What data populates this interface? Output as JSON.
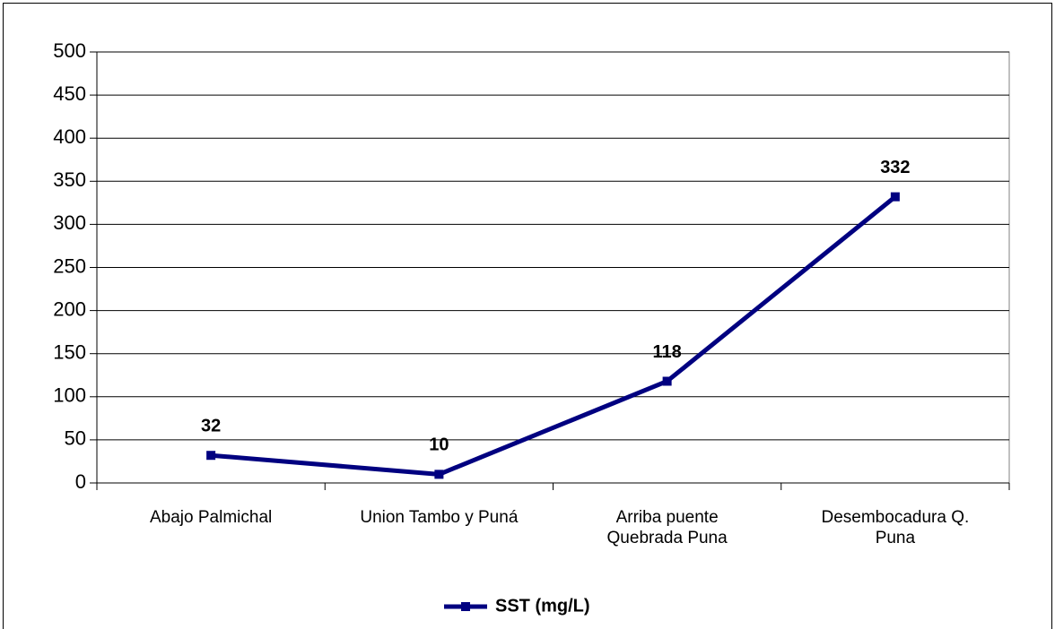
{
  "chart_data": {
    "type": "line",
    "categories": [
      "Abajo Palmichal",
      "Union Tambo y Puná",
      "Arriba puente Quebrada Puna",
      "Desembocadura Q. Puna"
    ],
    "series": [
      {
        "name": "SST (mg/L)",
        "color": "#000080",
        "values": [
          32,
          10,
          118,
          332
        ]
      }
    ],
    "ylim": [
      0,
      500
    ],
    "yticks": [
      0,
      50,
      100,
      150,
      200,
      250,
      300,
      350,
      400,
      450,
      500
    ],
    "grid": true,
    "legend": "bottom"
  }
}
